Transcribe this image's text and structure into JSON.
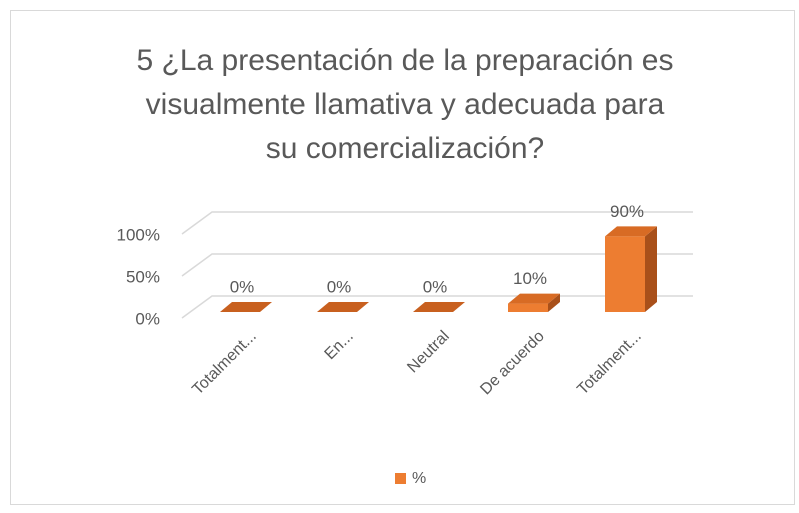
{
  "chart_data": {
    "type": "bar3d",
    "title": "5 ¿La presentación de la preparación es visualmente llamativa y adecuada para su comercialización?",
    "title_lines": [
      "5 ¿La presentación de la preparación es",
      "visualmente llamativa y adecuada para",
      "su comercialización?"
    ],
    "categories": [
      "Totalment...",
      "En...",
      "Neutral",
      "De acuerdo",
      "Totalment..."
    ],
    "series": [
      {
        "name": "%",
        "color": "#ed7d31",
        "values": [
          0,
          0,
          0,
          10,
          90
        ],
        "value_labels": [
          "0%",
          "0%",
          "0%",
          "10%",
          "90%"
        ]
      }
    ],
    "ylim": [
      0,
      100
    ],
    "yticks": [
      {
        "value": 0,
        "label": "0%"
      },
      {
        "value": 50,
        "label": "50%"
      },
      {
        "value": 100,
        "label": "100%"
      }
    ],
    "grid": true,
    "legend": "bottom"
  }
}
